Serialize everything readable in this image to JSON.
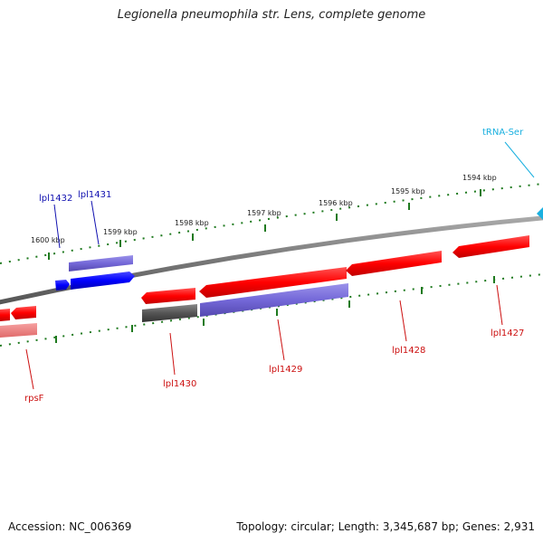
{
  "title": "Legionella pneumophila str. Lens, complete genome",
  "footer": {
    "accession": "Accession: NC_006369",
    "summary": "Topology: circular; Length: 3,345,687 bp; Genes: 2,931"
  },
  "scale_labels": [
    "1600 kbp",
    "1599 kbp",
    "1598 kbp",
    "1597 kbp",
    "1596 kbp",
    "1595 kbp",
    "1594 kbp"
  ],
  "genes": {
    "lpl1432": "lpl1432",
    "lpl1431": "lpl1431",
    "lpl1430": "lpl1430",
    "lpl1429": "lpl1429",
    "lpl1428": "lpl1428",
    "lpl1427": "lpl1427",
    "rpsF": "rpsF",
    "trna_ser": "tRNA-Ser"
  },
  "colors": {
    "gene_red": "#ff0000",
    "gene_blue": "#0000ff",
    "gene_purple": "#7468d8",
    "gene_gray": "#555555",
    "gene_pink": "#f08080",
    "trna_cyan": "#1ab0e0",
    "backbone": "#7a7a7a",
    "scale_green": "#1f7a1f",
    "label_blue": "#1010b0",
    "label_red": "#cc1010"
  }
}
